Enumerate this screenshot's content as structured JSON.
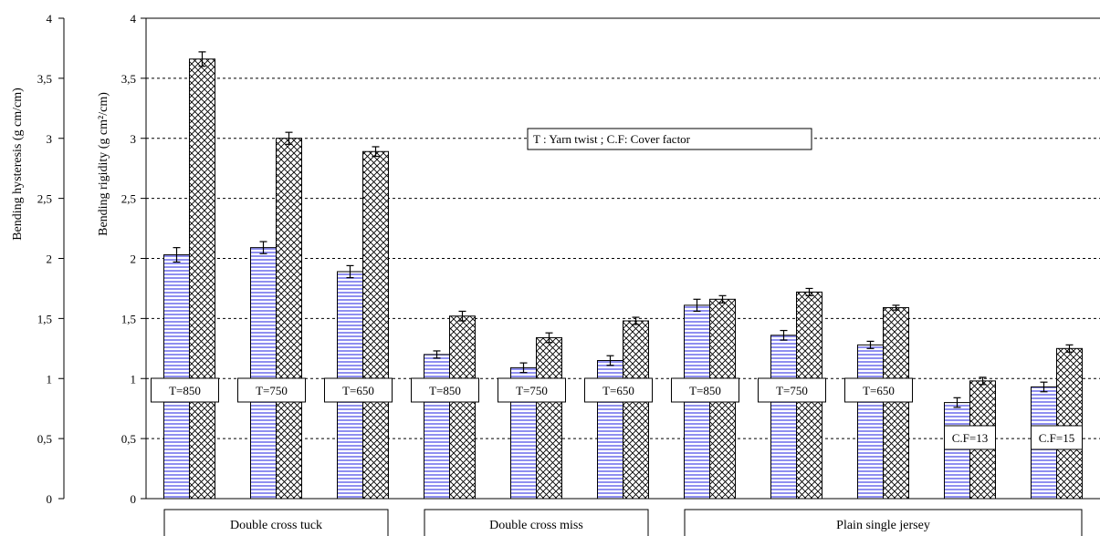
{
  "chart_data": {
    "type": "bar",
    "title": "",
    "ylabel_left": "Bending hysteresis (g cm/cm)",
    "ylabel_right": "Bending rigidity (g cm²/cm)",
    "ylim": [
      0,
      4
    ],
    "yticks": [
      "0",
      "0,5",
      "1",
      "1,5",
      "2",
      "2,5",
      "3",
      "3,5",
      "4"
    ],
    "grid": "horizontal dashed",
    "annotation": "T : Yarn twist  ; C.F: Cover factor",
    "groups": [
      {
        "label": "Double cross tuck",
        "bars": [
          0,
          1,
          2
        ]
      },
      {
        "label": "Double cross miss",
        "bars": [
          3,
          4,
          5
        ]
      },
      {
        "label": "Plain single jersey",
        "bars": [
          6,
          7,
          8,
          9,
          10
        ]
      }
    ],
    "categories": [
      "T=850",
      "T=750",
      "T=650",
      "T=850",
      "T=750",
      "T=650",
      "T=850",
      "T=750",
      "T=650",
      "C.F=13",
      "C.F=15"
    ],
    "series": [
      {
        "name": "",
        "pattern": "horizontal-stripes",
        "color": "#8f8ff0",
        "values": [
          2.03,
          2.09,
          1.89,
          1.2,
          1.09,
          1.15,
          1.61,
          1.36,
          1.28,
          0.8,
          0.93
        ],
        "errors": [
          0.06,
          0.05,
          0.05,
          0.03,
          0.04,
          0.04,
          0.05,
          0.04,
          0.03,
          0.04,
          0.04
        ]
      },
      {
        "name": "",
        "pattern": "crosshatch",
        "color": "#000000",
        "values": [
          3.66,
          3.0,
          2.89,
          1.52,
          1.34,
          1.48,
          1.66,
          1.72,
          1.59,
          0.98,
          1.25
        ],
        "errors": [
          0.06,
          0.05,
          0.04,
          0.04,
          0.04,
          0.03,
          0.03,
          0.03,
          0.02,
          0.03,
          0.03
        ]
      }
    ]
  }
}
